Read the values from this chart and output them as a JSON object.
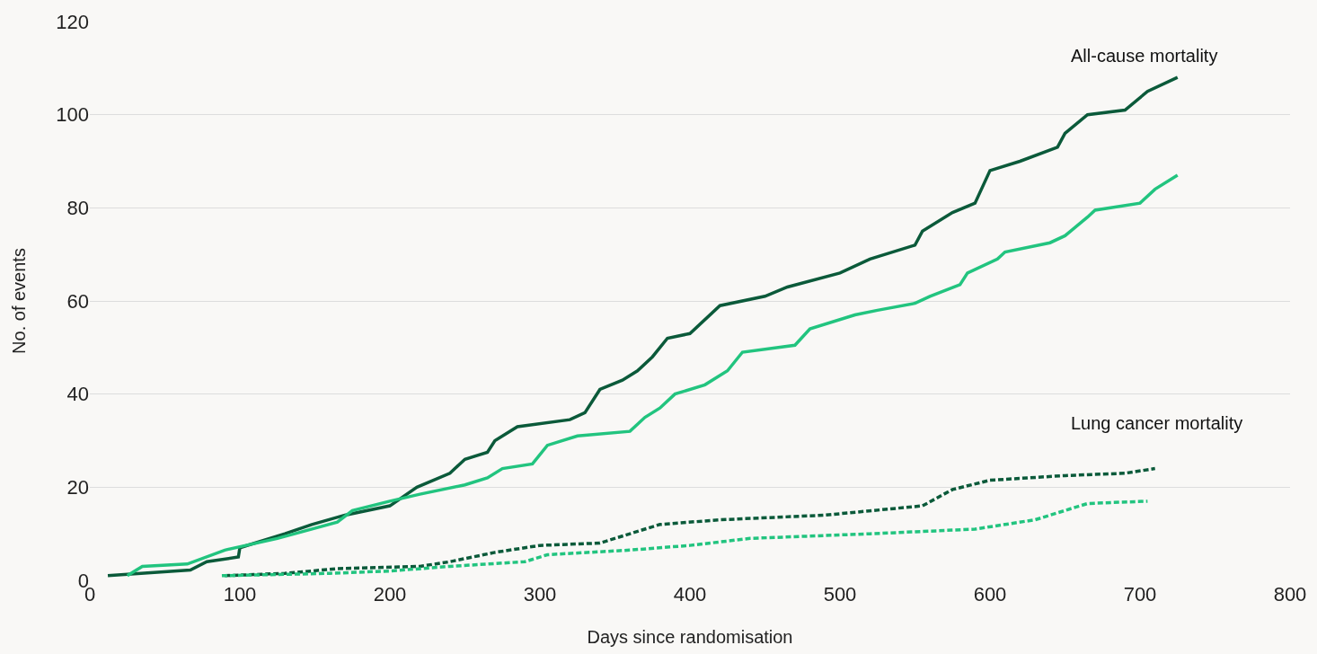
{
  "chart_data": {
    "type": "line",
    "xlabel": "Days since randomisation",
    "ylabel": "No. of events",
    "xlim": [
      0,
      800
    ],
    "xticks": [
      0,
      100,
      200,
      300,
      400,
      500,
      600,
      700,
      800
    ],
    "ylim": [
      0,
      120
    ],
    "yticks": [
      0,
      20,
      40,
      60,
      80,
      100,
      120
    ],
    "grid": "y",
    "marker": "none",
    "annotations": [
      "All-cause mortality",
      "Lung cancer mortality"
    ],
    "series": [
      {
        "color": "#0b5a3a",
        "line_style": "solid",
        "x": [
          12,
          67,
          78,
          99,
          100,
          130,
          148,
          170,
          200,
          218,
          240,
          250,
          265,
          270,
          285,
          320,
          330,
          340,
          355,
          365,
          375,
          385,
          400,
          420,
          450,
          465,
          500,
          520,
          550,
          555,
          575,
          590,
          600,
          620,
          645,
          650,
          665,
          690,
          705,
          725
        ],
        "values": [
          1,
          2.2,
          4,
          5,
          7,
          10,
          12,
          14,
          16,
          20,
          23,
          26,
          27.5,
          30,
          33,
          34.5,
          36,
          41,
          43,
          45,
          48,
          52,
          53,
          59,
          61,
          63,
          66,
          69,
          72,
          75,
          79,
          81,
          88,
          90,
          93,
          96,
          100,
          101,
          105,
          108
        ]
      },
      {
        "color": "#22c47f",
        "line_style": "solid",
        "x": [
          25,
          35,
          65,
          90,
          125,
          165,
          175,
          200,
          220,
          250,
          265,
          275,
          295,
          305,
          325,
          360,
          370,
          380,
          390,
          410,
          425,
          435,
          470,
          480,
          510,
          525,
          550,
          560,
          580,
          585,
          605,
          610,
          640,
          650,
          665,
          670,
          700,
          710,
          725
        ],
        "values": [
          1,
          3,
          3.5,
          6.5,
          9,
          12.5,
          15,
          17,
          18.5,
          20.5,
          22,
          24,
          25,
          29,
          31,
          32,
          35,
          37,
          40,
          42,
          45,
          49,
          50.5,
          54,
          57,
          58,
          59.5,
          61,
          63.5,
          66,
          69,
          70.5,
          72.5,
          74,
          78,
          79.5,
          81,
          84,
          87
        ]
      },
      {
        "color": "#0b5a3a",
        "line_style": "dashed",
        "x": [
          90,
          130,
          165,
          220,
          240,
          270,
          300,
          340,
          380,
          420,
          490,
          555,
          575,
          600,
          650,
          690,
          710
        ],
        "values": [
          1,
          1.5,
          2.5,
          3,
          4,
          6,
          7.5,
          8,
          12,
          13,
          14,
          16,
          19.5,
          21.5,
          22.5,
          23,
          24
        ]
      },
      {
        "color": "#22c47f",
        "line_style": "dashed",
        "x": [
          88,
          160,
          200,
          240,
          290,
          305,
          360,
          400,
          440,
          520,
          590,
          630,
          665,
          705
        ],
        "values": [
          1,
          1.5,
          2,
          3,
          4,
          5.5,
          6.5,
          7.5,
          9,
          10,
          11,
          13,
          16.5,
          17
        ]
      }
    ]
  }
}
